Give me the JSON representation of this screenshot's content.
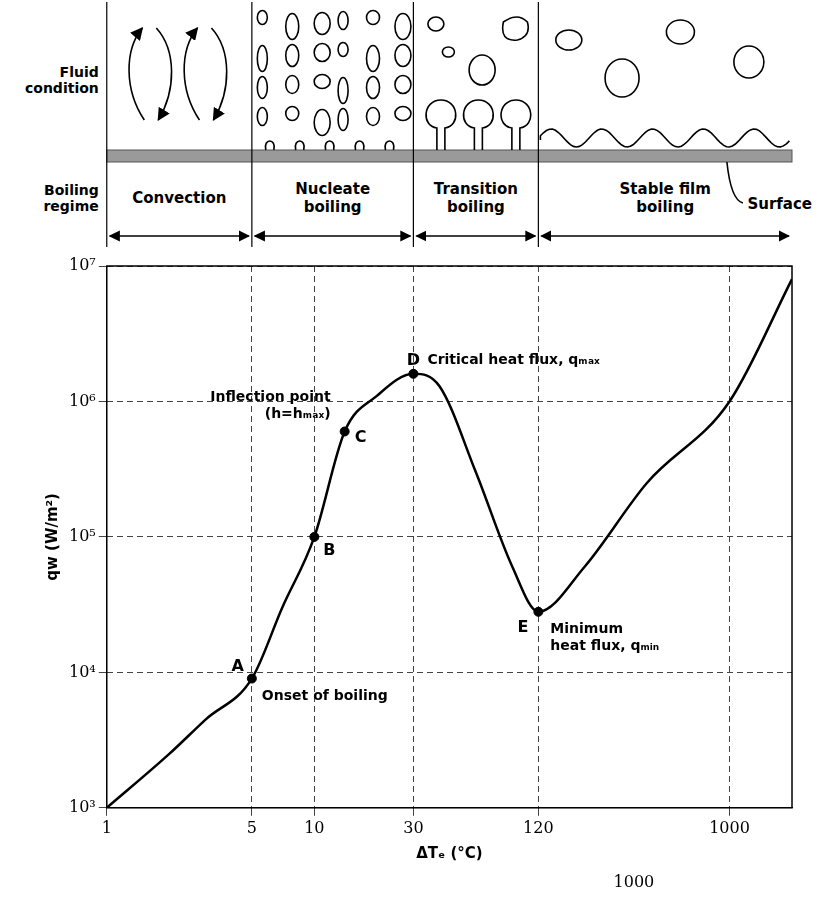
{
  "chart_data": {
    "type": "line",
    "x_label": "ΔTₑ (°C)",
    "y_label": "qw (W/m²)",
    "log": true,
    "grid": true,
    "x": [
      1,
      2,
      3,
      5,
      7,
      10,
      14,
      20,
      30,
      40,
      60,
      90,
      120,
      200,
      400,
      1000,
      2000
    ],
    "series": [
      {
        "color": "#000000",
        "values": [
          1000,
          2500,
          4500,
          9000,
          30000,
          100000,
          600000,
          1100000,
          1600000,
          1300000,
          300000,
          60000,
          28000,
          60000,
          250000,
          1000000,
          8000000
        ]
      }
    ],
    "xlim": [
      1,
      2000
    ],
    "xticks": [
      1,
      5,
      10,
      30,
      120,
      1000
    ],
    "ylim": [
      1000,
      10000000
    ],
    "yticks": [
      {
        "value": 1000,
        "label": "10³"
      },
      {
        "value": 10000,
        "label": "10⁴"
      },
      {
        "value": 100000,
        "label": "10⁵"
      },
      {
        "value": 1000000,
        "label": "10⁶"
      },
      {
        "value": 10000000,
        "label": "10⁷"
      }
    ],
    "points": [
      {
        "label": "A",
        "x": 5,
        "y": 9000,
        "note": [
          "Onset of boiling"
        ]
      },
      {
        "label": "B",
        "x": 10,
        "y": 100000,
        "note": []
      },
      {
        "label": "C",
        "x": 14,
        "y": 600000,
        "note": [
          "Inflection point",
          "(h=hₘₐₓ)"
        ]
      },
      {
        "label": "D",
        "x": 30,
        "y": 1600000,
        "note": [
          "Critical heat flux, qₘₐₓ"
        ]
      },
      {
        "label": "E",
        "x": 120,
        "y": 28000,
        "note": [
          "Minimum",
          "heat flux, qₘᵢₙ"
        ]
      }
    ],
    "extra_text": "1000",
    "diagram": {
      "row_labels": [
        "Fluid condition",
        "Boiling regime"
      ],
      "regimes": [
        {
          "label": "Convection",
          "from": 1,
          "to": 5
        },
        {
          "label": "Nucleate boiling",
          "from": 5,
          "to": 30
        },
        {
          "label": "Transition boiling",
          "from": 30,
          "to": 120
        },
        {
          "label": "Stable film boiling",
          "from": 120,
          "to": 2000
        }
      ],
      "surface_label": "Surface"
    }
  }
}
